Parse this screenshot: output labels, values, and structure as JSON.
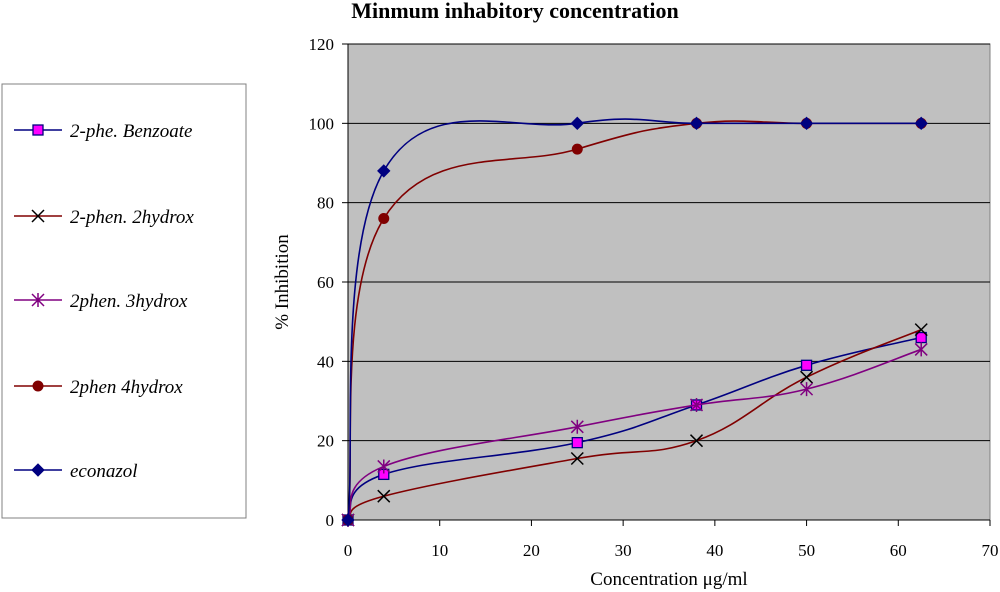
{
  "chart_data": {
    "type": "line",
    "title": "Minmum inhabitory concentration",
    "xlabel": "Concentration μg/ml",
    "ylabel": "% Inhibition",
    "xlim": [
      0,
      70
    ],
    "ylim": [
      0,
      120
    ],
    "xticks": [
      0,
      10,
      20,
      30,
      40,
      50,
      60,
      70
    ],
    "yticks": [
      0,
      20,
      40,
      60,
      80,
      100,
      120
    ],
    "grid": "horizontal",
    "plot_background": "#c0c0c0",
    "legend_position": "left",
    "series": [
      {
        "name": "2-phe. Benzoate",
        "color": "#000080",
        "marker": "square",
        "marker_fill": "#ff00ff",
        "x": [
          0,
          3.9,
          25,
          38,
          50,
          62.5
        ],
        "y": [
          0,
          11.5,
          19.5,
          29,
          39,
          46
        ]
      },
      {
        "name": "2-phen. 2hydrox",
        "color": "#800000",
        "marker": "x",
        "marker_fill": "#000000",
        "x": [
          0,
          3.9,
          25,
          38,
          50,
          62.5
        ],
        "y": [
          0,
          6,
          15.5,
          20,
          36,
          48
        ]
      },
      {
        "name": "2phen. 3hydrox",
        "color": "#800080",
        "marker": "star",
        "marker_fill": "#800080",
        "x": [
          0,
          3.9,
          25,
          38,
          50,
          62.5
        ],
        "y": [
          0,
          13.5,
          23.5,
          29,
          33,
          43
        ]
      },
      {
        "name": "2phen 4hydrox",
        "color": "#800000",
        "marker": "circle",
        "marker_fill": "#800000",
        "x": [
          0,
          3.9,
          25,
          38,
          50,
          62.5
        ],
        "y": [
          0,
          76,
          93.5,
          100,
          100,
          100
        ]
      },
      {
        "name": "econazol",
        "color": "#000080",
        "marker": "diamond",
        "marker_fill": "#000080",
        "x": [
          0,
          3.9,
          25,
          38,
          50,
          62.5
        ],
        "y": [
          0,
          88,
          100,
          100,
          100,
          100
        ]
      }
    ]
  }
}
